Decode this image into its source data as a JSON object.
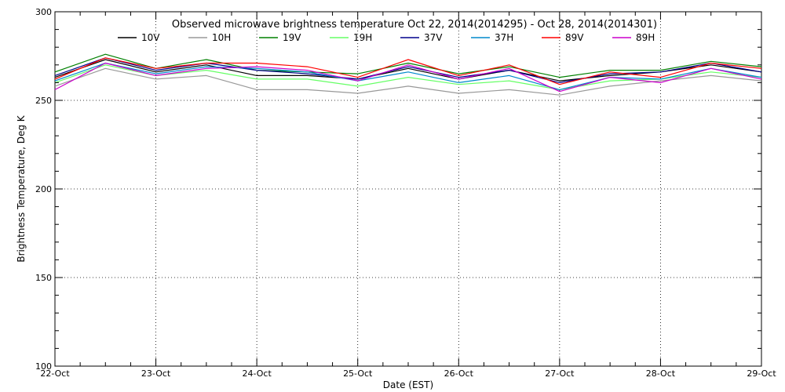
{
  "chart_data": {
    "type": "line",
    "title": "Observed microwave brightness temperature Oct 22, 2014(2014295) - Oct 28, 2014(2014301)",
    "xlabel": "Date (EST)",
    "ylabel": "Brightness Temperature, Deg K",
    "x_ticks": [
      "22-Oct",
      "23-Oct",
      "24-Oct",
      "25-Oct",
      "26-Oct",
      "27-Oct",
      "28-Oct",
      "29-Oct"
    ],
    "xlim": [
      "2014-10-22",
      "2014-10-29"
    ],
    "y_ticks": [
      100,
      150,
      200,
      250,
      300
    ],
    "ylim": [
      100,
      300
    ],
    "grid": true,
    "legend_position": "top",
    "x": [
      "2014-10-22",
      "2014-10-22 12:00",
      "2014-10-23",
      "2014-10-23 12:00",
      "2014-10-24",
      "2014-10-24 12:00",
      "2014-10-25",
      "2014-10-25 12:00",
      "2014-10-26",
      "2014-10-26 12:00",
      "2014-10-27",
      "2014-10-27 12:00",
      "2014-10-28",
      "2014-10-28 12:00",
      "2014-10-29"
    ],
    "series": [
      {
        "name": "10V",
        "color": "#000000",
        "values": [
          263,
          273,
          266,
          270,
          264,
          264,
          262,
          268,
          262,
          267,
          261,
          264,
          266,
          270,
          266
        ]
      },
      {
        "name": "10H",
        "color": "#999999",
        "values": [
          258,
          268,
          262,
          264,
          256,
          256,
          254,
          258,
          254,
          256,
          253,
          258,
          261,
          264,
          261
        ]
      },
      {
        "name": "19V",
        "color": "#008000",
        "values": [
          266,
          276,
          268,
          273,
          267,
          266,
          265,
          271,
          265,
          269,
          263,
          267,
          267,
          272,
          269
        ]
      },
      {
        "name": "19H",
        "color": "#66ff66",
        "values": [
          260,
          270,
          264,
          267,
          262,
          262,
          258,
          263,
          259,
          261,
          256,
          261,
          262,
          266,
          263
        ]
      },
      {
        "name": "37V",
        "color": "#00008b",
        "values": [
          264,
          274,
          267,
          271,
          267,
          265,
          262,
          269,
          263,
          267,
          260,
          265,
          266,
          271,
          266
        ]
      },
      {
        "name": "37H",
        "color": "#0088cc",
        "values": [
          261,
          271,
          265,
          269,
          268,
          266,
          261,
          266,
          260,
          264,
          256,
          263,
          262,
          268,
          263
        ]
      },
      {
        "name": "89V",
        "color": "#ff0000",
        "values": [
          262,
          274,
          268,
          271,
          271,
          269,
          263,
          273,
          264,
          270,
          259,
          266,
          263,
          271,
          268
        ]
      },
      {
        "name": "89H",
        "color": "#cc00cc",
        "values": [
          256,
          271,
          264,
          268,
          269,
          267,
          261,
          270,
          262,
          268,
          255,
          263,
          260,
          268,
          262
        ]
      }
    ]
  }
}
